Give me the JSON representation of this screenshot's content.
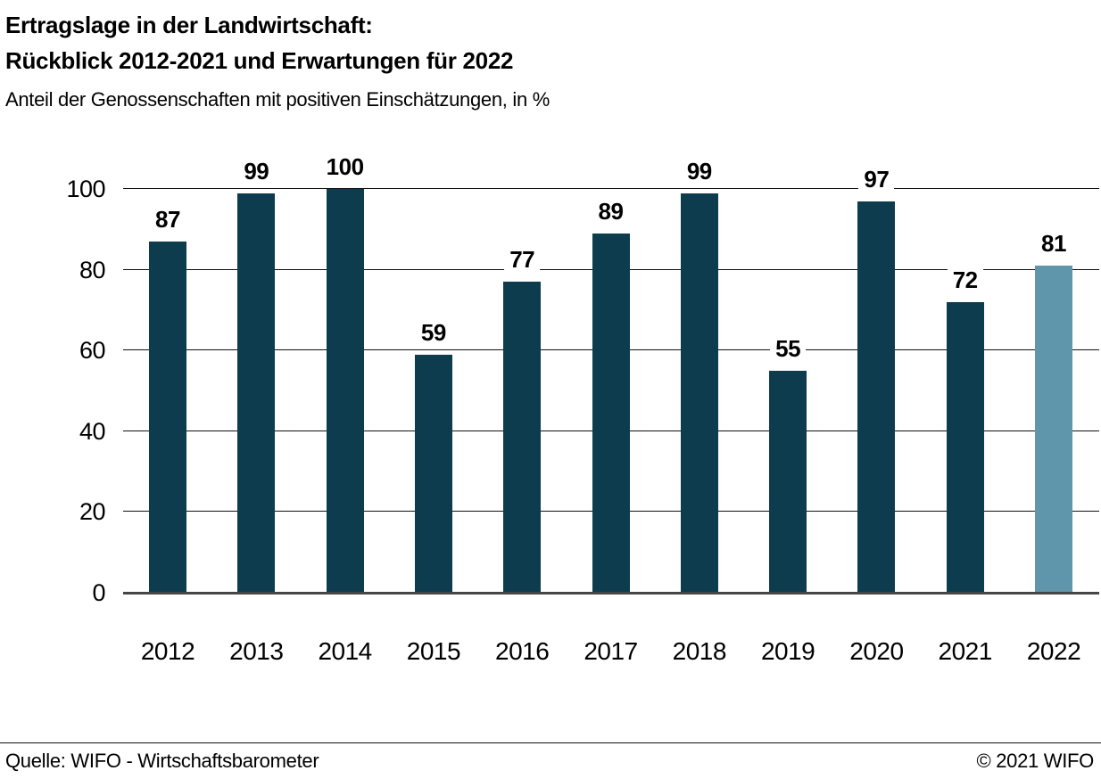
{
  "header": {
    "title_line1": "Ertragslage in der Landwirtschaft:",
    "title_line2": "Rückblick 2012-2021 und Erwartungen für 2022",
    "subtitle": "Anteil der Genossenschaften mit positiven Einschätzungen, in %"
  },
  "chart_data": {
    "type": "bar",
    "title": "Ertragslage in der Landwirtschaft: Rückblick 2012-2021 und Erwartungen für 2022",
    "subtitle": "Anteil der Genossenschaften mit positiven Einschätzungen, in %",
    "categories": [
      "2012",
      "2013",
      "2014",
      "2015",
      "2016",
      "2017",
      "2018",
      "2019",
      "2020",
      "2021",
      "2022"
    ],
    "values": [
      87,
      99,
      100,
      59,
      77,
      89,
      99,
      55,
      97,
      72,
      81
    ],
    "highlight_category": "2022",
    "xlabel": "",
    "ylabel": "",
    "ylim": [
      0,
      100
    ],
    "yticks": [
      0,
      20,
      40,
      60,
      80,
      100
    ],
    "grid": true,
    "legend": "none",
    "colors": {
      "bar": "#0d3c4f",
      "highlight": "#6096ab",
      "gridline": "#111111",
      "baseline": "#464646",
      "text": "#000000"
    }
  },
  "footer": {
    "source": "Quelle: WIFO - Wirtschaftsbarometer",
    "copyright": "© 2021 WIFO"
  }
}
